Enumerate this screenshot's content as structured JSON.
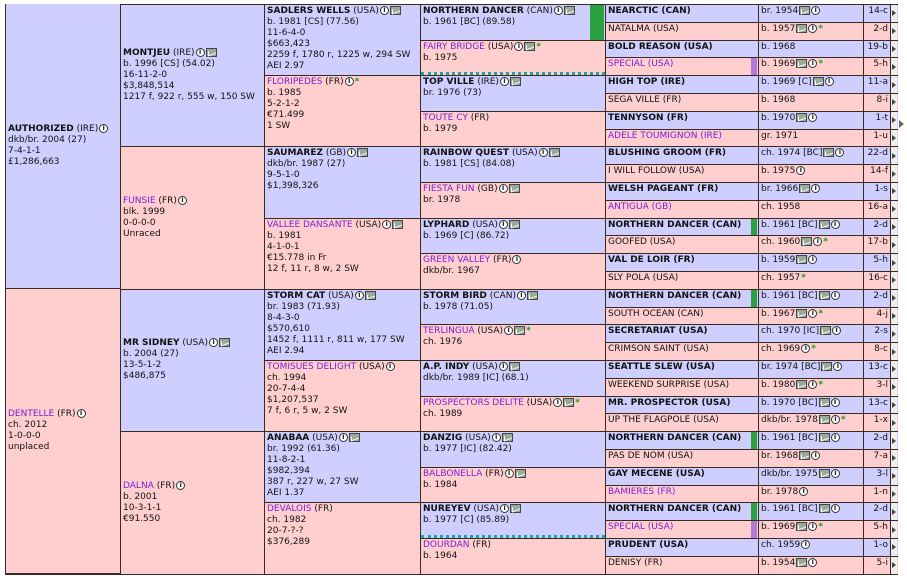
{
  "horses": [
    {
      "id": "g0_0",
      "name": "AUTHORIZED",
      "country": "(IRE)",
      "lines": [
        "dkb/br. 2004 (27)",
        "7-4-1-1",
        "£1,286,663"
      ],
      "sex": "m",
      "icons": [
        "info"
      ]
    },
    {
      "id": "g0_1",
      "name": "DENTELLE",
      "country": "(FR)",
      "lines": [
        "ch. 2012",
        "1-0-0-0",
        "unplaced"
      ],
      "sex": "f",
      "icons": [
        "info"
      ]
    },
    {
      "id": "g1_0",
      "name": "MONTJEU",
      "country": "(IRE)",
      "lines": [
        "b. 1996 [CS] (54.02)",
        "16-11-2-0",
        "$3,848,514",
        "1217 f, 922 r, 555 w, 150 SW"
      ],
      "sex": "m",
      "icons": [
        "info",
        "mail"
      ]
    },
    {
      "id": "g1_1",
      "name": "FUNSIE",
      "country": "(FR)",
      "lines": [
        "blk. 1999",
        "0-0-0-0",
        "Unraced"
      ],
      "sex": "f",
      "icons": [
        "info"
      ]
    },
    {
      "id": "g1_2",
      "name": "MR SIDNEY",
      "country": "(USA)",
      "lines": [
        "b. 2004 (27)",
        "13-5-1-2",
        "$486,875"
      ],
      "sex": "m",
      "icons": [
        "info",
        "mail"
      ]
    },
    {
      "id": "g1_3",
      "name": "DALNA",
      "country": "(FR)",
      "lines": [
        "b. 2001",
        "10-3-1-1",
        "€91.550"
      ],
      "sex": "f",
      "icons": [
        "info"
      ]
    },
    {
      "id": "g2_0",
      "name": "SADLERS WELLS",
      "country": "(USA)",
      "lines": [
        "b. 1981 [CS] (77.56)",
        "11-6-4-0",
        "$663,423",
        "2259 f, 1780 r, 1225 w, 294 SW",
        "AEI 2.97"
      ],
      "sex": "m",
      "icons": [
        "info",
        "mail"
      ]
    },
    {
      "id": "g2_1",
      "name": "FLORIPEDES",
      "country": "(FR)",
      "lines": [
        "b. 1985",
        "5-2-1-2",
        "€71.499",
        "1 SW"
      ],
      "sex": "f",
      "icons": [
        "info",
        "star"
      ]
    },
    {
      "id": "g2_2",
      "name": "SAUMAREZ",
      "country": "(GB)",
      "lines": [
        "dkb/br. 1987 (27)",
        "9-5-1-0",
        "$1,398,326"
      ],
      "sex": "m",
      "icons": [
        "info",
        "mail"
      ]
    },
    {
      "id": "g2_3",
      "name": "VALLEE DANSANTE",
      "country": "(USA)",
      "lines": [
        "b. 1981",
        "4-1-0-1",
        "€15.778 in Fr",
        "12 f, 11 r, 8 w, 2 SW"
      ],
      "sex": "f",
      "icons": [
        "info",
        "mail"
      ]
    },
    {
      "id": "g2_4",
      "name": "STORM CAT",
      "country": "(USA)",
      "lines": [
        "br. 1983 (71.93)",
        "8-4-3-0",
        "$570,610",
        "1452 f, 1111 r, 811 w, 177 SW",
        "AEI 2.94"
      ],
      "sex": "m",
      "icons": [
        "info",
        "mail"
      ]
    },
    {
      "id": "g2_5",
      "name": "TOMISUES DELIGHT",
      "country": "(USA)",
      "lines": [
        "ch. 1994",
        "20-7-4-4",
        "$1,207,537",
        "7 f, 6 r, 5 w, 2 SW"
      ],
      "sex": "f",
      "icons": [
        "info"
      ]
    },
    {
      "id": "g2_6",
      "name": "ANABAA",
      "country": "(USA)",
      "lines": [
        "br. 1992 (61.36)",
        "11-8-2-1",
        "$982,394",
        "387 r, 227 w, 27 SW",
        "AEI 1.37"
      ],
      "sex": "m",
      "icons": [
        "info",
        "mail"
      ]
    },
    {
      "id": "g2_7",
      "name": "DEVALOIS",
      "country": "(FR)",
      "lines": [
        "ch. 1982",
        "20-7-?-?",
        "$376,289"
      ],
      "sex": "f",
      "icons": []
    },
    {
      "id": "g3_0",
      "name": "NORTHERN DANCER",
      "country": "(CAN)",
      "lines": [
        "b. 1961 [BC] (89.58)"
      ],
      "sex": "m",
      "icons": [
        "info",
        "mail"
      ],
      "bar": "#2aa040"
    },
    {
      "id": "g3_1",
      "name": "FAIRY BRIDGE",
      "country": "(USA)",
      "lines": [
        "b. 1975"
      ],
      "sex": "f",
      "icons": [
        "info",
        "mail",
        "star"
      ],
      "dots": true
    },
    {
      "id": "g3_2",
      "name": "TOP VILLE",
      "country": "(IRE)",
      "lines": [
        "br. 1976 (73)"
      ],
      "sex": "m",
      "icons": [
        "info",
        "mail"
      ]
    },
    {
      "id": "g3_3",
      "name": "TOUTE CY",
      "country": "(FR)",
      "lines": [
        "b. 1979"
      ],
      "sex": "f",
      "icons": []
    },
    {
      "id": "g3_4",
      "name": "RAINBOW QUEST",
      "country": "(USA)",
      "lines": [
        "b. 1981 [CS] (84.08)"
      ],
      "sex": "m",
      "icons": [
        "info",
        "mail"
      ]
    },
    {
      "id": "g3_5",
      "name": "FIESTA FUN",
      "country": "(GB)",
      "lines": [
        "br. 1978"
      ],
      "sex": "f",
      "icons": [
        "info",
        "mail"
      ]
    },
    {
      "id": "g3_6",
      "name": "LYPHARD",
      "country": "(USA)",
      "lines": [
        "b. 1969 [C] (86.72)"
      ],
      "sex": "m",
      "icons": [
        "info",
        "mail"
      ]
    },
    {
      "id": "g3_7",
      "name": "GREEN VALLEY",
      "country": "(FR)",
      "lines": [
        "dkb/br. 1967"
      ],
      "sex": "f",
      "icons": [
        "info"
      ]
    },
    {
      "id": "g3_8",
      "name": "STORM BIRD",
      "country": "(CAN)",
      "lines": [
        "b. 1978 (71.05)"
      ],
      "sex": "m",
      "icons": [
        "info",
        "mail"
      ]
    },
    {
      "id": "g3_9",
      "name": "TERLINGUA",
      "country": "(USA)",
      "lines": [
        "ch. 1976"
      ],
      "sex": "f",
      "icons": [
        "info",
        "mail",
        "star"
      ]
    },
    {
      "id": "g3_10",
      "name": "A.P. INDY",
      "country": "(USA)",
      "lines": [
        "dkb/br. 1989 [IC] (68.1)"
      ],
      "sex": "m",
      "icons": [
        "info",
        "mail"
      ]
    },
    {
      "id": "g3_11",
      "name": "PROSPECTORS DELITE",
      "country": "(USA)",
      "lines": [
        "ch. 1989"
      ],
      "sex": "f",
      "icons": [
        "info",
        "mail",
        "star"
      ]
    },
    {
      "id": "g3_12",
      "name": "DANZIG",
      "country": "(USA)",
      "lines": [
        "b. 1977 [IC] (82.42)"
      ],
      "sex": "m",
      "icons": [
        "info",
        "mail"
      ]
    },
    {
      "id": "g3_13",
      "name": "BALBONELLA",
      "country": "(FR)",
      "lines": [
        "b. 1984"
      ],
      "sex": "f",
      "icons": [
        "info",
        "mail"
      ]
    },
    {
      "id": "g3_14",
      "name": "NUREYEV",
      "country": "(USA)",
      "lines": [
        "b. 1977 [C] (85.89)"
      ],
      "sex": "m",
      "icons": [
        "info",
        "mail"
      ],
      "dots": true
    },
    {
      "id": "g3_15",
      "name": "DOURDAN",
      "country": "(FR)",
      "lines": [
        "b. 1964"
      ],
      "sex": "f",
      "icons": []
    }
  ],
  "gen4": [
    {
      "name": "NEARCTIC (CAN)",
      "sex": "m",
      "info": "br. 1954",
      "icons": [
        "mail",
        "info"
      ],
      "code": "14-c"
    },
    {
      "name": "NATALMA (USA)",
      "sex": "f",
      "info": "b. 1957",
      "icons": [
        "mail",
        "info",
        "star"
      ],
      "code": "2-d"
    },
    {
      "name": "BOLD REASON (USA)",
      "sex": "m",
      "info": "b. 1968",
      "icons": [],
      "code": "19-b"
    },
    {
      "name": "SPECIAL (USA)",
      "sex": "f",
      "info": "b. 1969",
      "icons": [
        "mail",
        "info",
        "star"
      ],
      "code": "5-h",
      "bar": "#b07ad8",
      "purple": true
    },
    {
      "name": "HIGH TOP (IRE)",
      "sex": "m",
      "info": "b. 1969 [C]",
      "icons": [
        "mail",
        "info"
      ],
      "code": "11-a"
    },
    {
      "name": "SEGA VILLE (FR)",
      "sex": "f",
      "info": "b. 1968",
      "icons": [],
      "code": "8-i"
    },
    {
      "name": "TENNYSON (FR)",
      "sex": "m",
      "info": "b. 1970",
      "icons": [
        "mail",
        "info"
      ],
      "code": "1-t"
    },
    {
      "name": "ADELE TOUMIGNON (IRE)",
      "sex": "f",
      "info": "gr. 1971",
      "icons": [],
      "code": "1-u",
      "purple": true
    },
    {
      "name": "BLUSHING GROOM (FR)",
      "sex": "m",
      "info": "ch. 1974 [BC]",
      "icons": [
        "mail",
        "info"
      ],
      "code": "22-d"
    },
    {
      "name": "I WILL FOLLOW (USA)",
      "sex": "f",
      "info": "b. 1975",
      "icons": [
        "info"
      ],
      "code": "14-f"
    },
    {
      "name": "WELSH PAGEANT (FR)",
      "sex": "m",
      "info": "br. 1966",
      "icons": [
        "mail",
        "info"
      ],
      "code": "1-s"
    },
    {
      "name": "ANTIGUA (GB)",
      "sex": "f",
      "info": "ch. 1958",
      "icons": [],
      "code": "16-a",
      "purple": true
    },
    {
      "name": "NORTHERN DANCER (CAN)",
      "sex": "m",
      "info": "b. 1961 [BC]",
      "icons": [
        "mail",
        "info"
      ],
      "code": "2-d",
      "bar": "#2aa040"
    },
    {
      "name": "GOOFED (USA)",
      "sex": "f",
      "info": "ch. 1960",
      "icons": [
        "mail",
        "info",
        "star"
      ],
      "code": "17-b"
    },
    {
      "name": "VAL DE LOIR (FR)",
      "sex": "m",
      "info": "b. 1959",
      "icons": [
        "mail",
        "info"
      ],
      "code": "5-h"
    },
    {
      "name": "SLY POLA (USA)",
      "sex": "f",
      "info": "ch. 1957",
      "icons": [
        "star"
      ],
      "code": "16-c"
    },
    {
      "name": "NORTHERN DANCER (CAN)",
      "sex": "m",
      "info": "b. 1961 [BC]",
      "icons": [
        "mail",
        "info"
      ],
      "code": "2-d",
      "bar": "#2aa040"
    },
    {
      "name": "SOUTH OCEAN (CAN)",
      "sex": "f",
      "info": "b. 1967",
      "icons": [
        "mail",
        "info",
        "star"
      ],
      "code": "4-j"
    },
    {
      "name": "SECRETARIAT (USA)",
      "sex": "m",
      "info": "ch. 1970 [IC]",
      "icons": [
        "mail",
        "info"
      ],
      "code": "2-s"
    },
    {
      "name": "CRIMSON SAINT (USA)",
      "sex": "f",
      "info": "ch. 1969",
      "icons": [
        "info",
        "star"
      ],
      "code": "8-c"
    },
    {
      "name": "SEATTLE SLEW (USA)",
      "sex": "m",
      "info": "br. 1974 [BC]",
      "icons": [
        "mail",
        "info"
      ],
      "code": "13-c"
    },
    {
      "name": "WEEKEND SURPRISE (USA)",
      "sex": "f",
      "info": "b. 1980",
      "icons": [
        "mail",
        "info",
        "star"
      ],
      "code": "3-l"
    },
    {
      "name": "MR. PROSPECTOR (USA)",
      "sex": "m",
      "info": "b. 1970 [BC]",
      "icons": [
        "mail",
        "info"
      ],
      "code": "13-c"
    },
    {
      "name": "UP THE FLAGPOLE (USA)",
      "sex": "f",
      "info": "dkb/br. 1978",
      "icons": [
        "mail",
        "info",
        "star"
      ],
      "code": "1-x"
    },
    {
      "name": "NORTHERN DANCER (CAN)",
      "sex": "m",
      "info": "b. 1961 [BC]",
      "icons": [
        "mail",
        "info"
      ],
      "code": "2-d",
      "bar": "#2aa040"
    },
    {
      "name": "PAS DE NOM (USA)",
      "sex": "f",
      "info": "br. 1968",
      "icons": [
        "mail",
        "info"
      ],
      "code": "7-a"
    },
    {
      "name": "GAY MECENE (USA)",
      "sex": "m",
      "info": "dkb/br. 1975",
      "icons": [
        "mail",
        "info"
      ],
      "code": "3-l"
    },
    {
      "name": "BAMIERES (FR)",
      "sex": "f",
      "info": "br. 1978",
      "icons": [
        "info"
      ],
      "code": "1-n",
      "purple": true
    },
    {
      "name": "NORTHERN DANCER (CAN)",
      "sex": "m",
      "info": "b. 1961 [BC]",
      "icons": [
        "mail",
        "info"
      ],
      "code": "2-d",
      "bar": "#2aa040"
    },
    {
      "name": "SPECIAL (USA)",
      "sex": "f",
      "info": "b. 1969",
      "icons": [
        "mail",
        "info",
        "star"
      ],
      "code": "5-h",
      "bar": "#b07ad8",
      "purple": true
    },
    {
      "name": "PRUDENT (USA)",
      "sex": "m",
      "info": "ch. 1959",
      "icons": [
        "info"
      ],
      "code": "1-o"
    },
    {
      "name": "DENISY (FR)",
      "sex": "f",
      "info": "b. 1954",
      "icons": [
        "mail",
        "info"
      ],
      "code": "5-i"
    }
  ],
  "icon_glyphs": {
    "info": "i",
    "star": "*"
  }
}
